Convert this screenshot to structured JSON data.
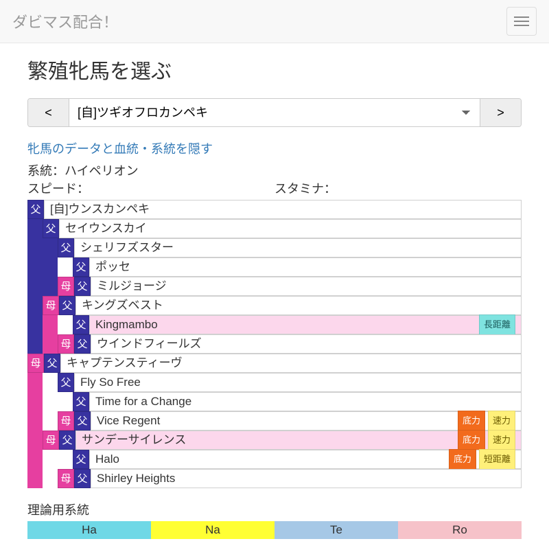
{
  "nav": {
    "brand": "ダビマス配合！"
  },
  "header": {
    "title": "繁殖牝馬を選ぶ",
    "prev": "<",
    "next": ">",
    "selected": "[自]ツギオフロカンペキ"
  },
  "link": "牝馬のデータと血統・系統を隠す",
  "info": {
    "lineage": "系統：ハイペリオン",
    "speed": "スピード：",
    "stamina": "スタミナ："
  },
  "tags": {
    "f": "父",
    "m": "母"
  },
  "badges": {
    "long": {
      "text": "長距離",
      "bg": "#7fe3e0",
      "fg": "#1b5a5a"
    },
    "bottom": {
      "text": "底力",
      "bg": "#f26b1d",
      "fg": "#ffffff"
    },
    "quick": {
      "text": "速力",
      "bg": "#fff07a",
      "fg": "#6a5a00"
    },
    "short": {
      "text": "短距離",
      "bg": "#fff07a",
      "fg": "#6a5a00"
    }
  },
  "pedigree": [
    {
      "stripes": [],
      "tags": [
        "f"
      ],
      "name": "[自]ウンスカンペキ",
      "hl": false,
      "badges": []
    },
    {
      "stripes": [
        "f"
      ],
      "tags": [
        "f"
      ],
      "name": "セイウンスカイ",
      "hl": false,
      "badges": []
    },
    {
      "stripes": [
        "f",
        "f"
      ],
      "tags": [
        "f"
      ],
      "name": "シェリフズスター",
      "hl": false,
      "badges": []
    },
    {
      "stripes": [
        "f",
        "f",
        ""
      ],
      "tags": [
        "f"
      ],
      "name": "ポッセ",
      "hl": false,
      "badges": []
    },
    {
      "stripes": [
        "f",
        "f"
      ],
      "tags": [
        "m",
        "f"
      ],
      "name": "ミルジョージ",
      "hl": false,
      "badges": []
    },
    {
      "stripes": [
        "f"
      ],
      "tags": [
        "m",
        "f"
      ],
      "name": "キングズベスト",
      "hl": false,
      "badges": []
    },
    {
      "stripes": [
        "f",
        "m",
        ""
      ],
      "tags": [
        "f"
      ],
      "name": "Kingmambo",
      "hl": true,
      "badges": [
        "long"
      ]
    },
    {
      "stripes": [
        "f",
        "m"
      ],
      "tags": [
        "m",
        "f"
      ],
      "name": "ウインドフィールズ",
      "hl": false,
      "badges": []
    },
    {
      "stripes": [],
      "tags": [
        "m",
        "f"
      ],
      "name": "キャプテンスティーヴ",
      "hl": false,
      "badges": []
    },
    {
      "stripes": [
        "m",
        ""
      ],
      "tags": [
        "f"
      ],
      "name": "Fly So Free",
      "hl": false,
      "badges": []
    },
    {
      "stripes": [
        "m",
        "",
        ""
      ],
      "tags": [
        "f"
      ],
      "name": "Time for a Change",
      "hl": false,
      "badges": []
    },
    {
      "stripes": [
        "m",
        ""
      ],
      "tags": [
        "m",
        "f"
      ],
      "name": "Vice Regent",
      "hl": false,
      "badges": [
        "bottom",
        "quick"
      ]
    },
    {
      "stripes": [
        "m"
      ],
      "tags": [
        "m",
        "f"
      ],
      "name": "サンデーサイレンス",
      "hl": true,
      "badges": [
        "bottom",
        "quick"
      ]
    },
    {
      "stripes": [
        "m",
        "",
        ""
      ],
      "tags": [
        "f"
      ],
      "name": "Halo",
      "hl": false,
      "badges": [
        "bottom",
        "short"
      ]
    },
    {
      "stripes": [
        "m",
        ""
      ],
      "tags": [
        "m",
        "f"
      ],
      "name": "Shirley Heights",
      "hl": false,
      "badges": []
    }
  ],
  "theory": {
    "title": "理論用系統",
    "cells": [
      {
        "label": "Ha",
        "bg": "#6fd8e6"
      },
      {
        "label": "Na",
        "bg": "#ffff33"
      },
      {
        "label": "Te",
        "bg": "#a6c8e6"
      },
      {
        "label": "Ro",
        "bg": "#f6c2c9"
      }
    ]
  }
}
